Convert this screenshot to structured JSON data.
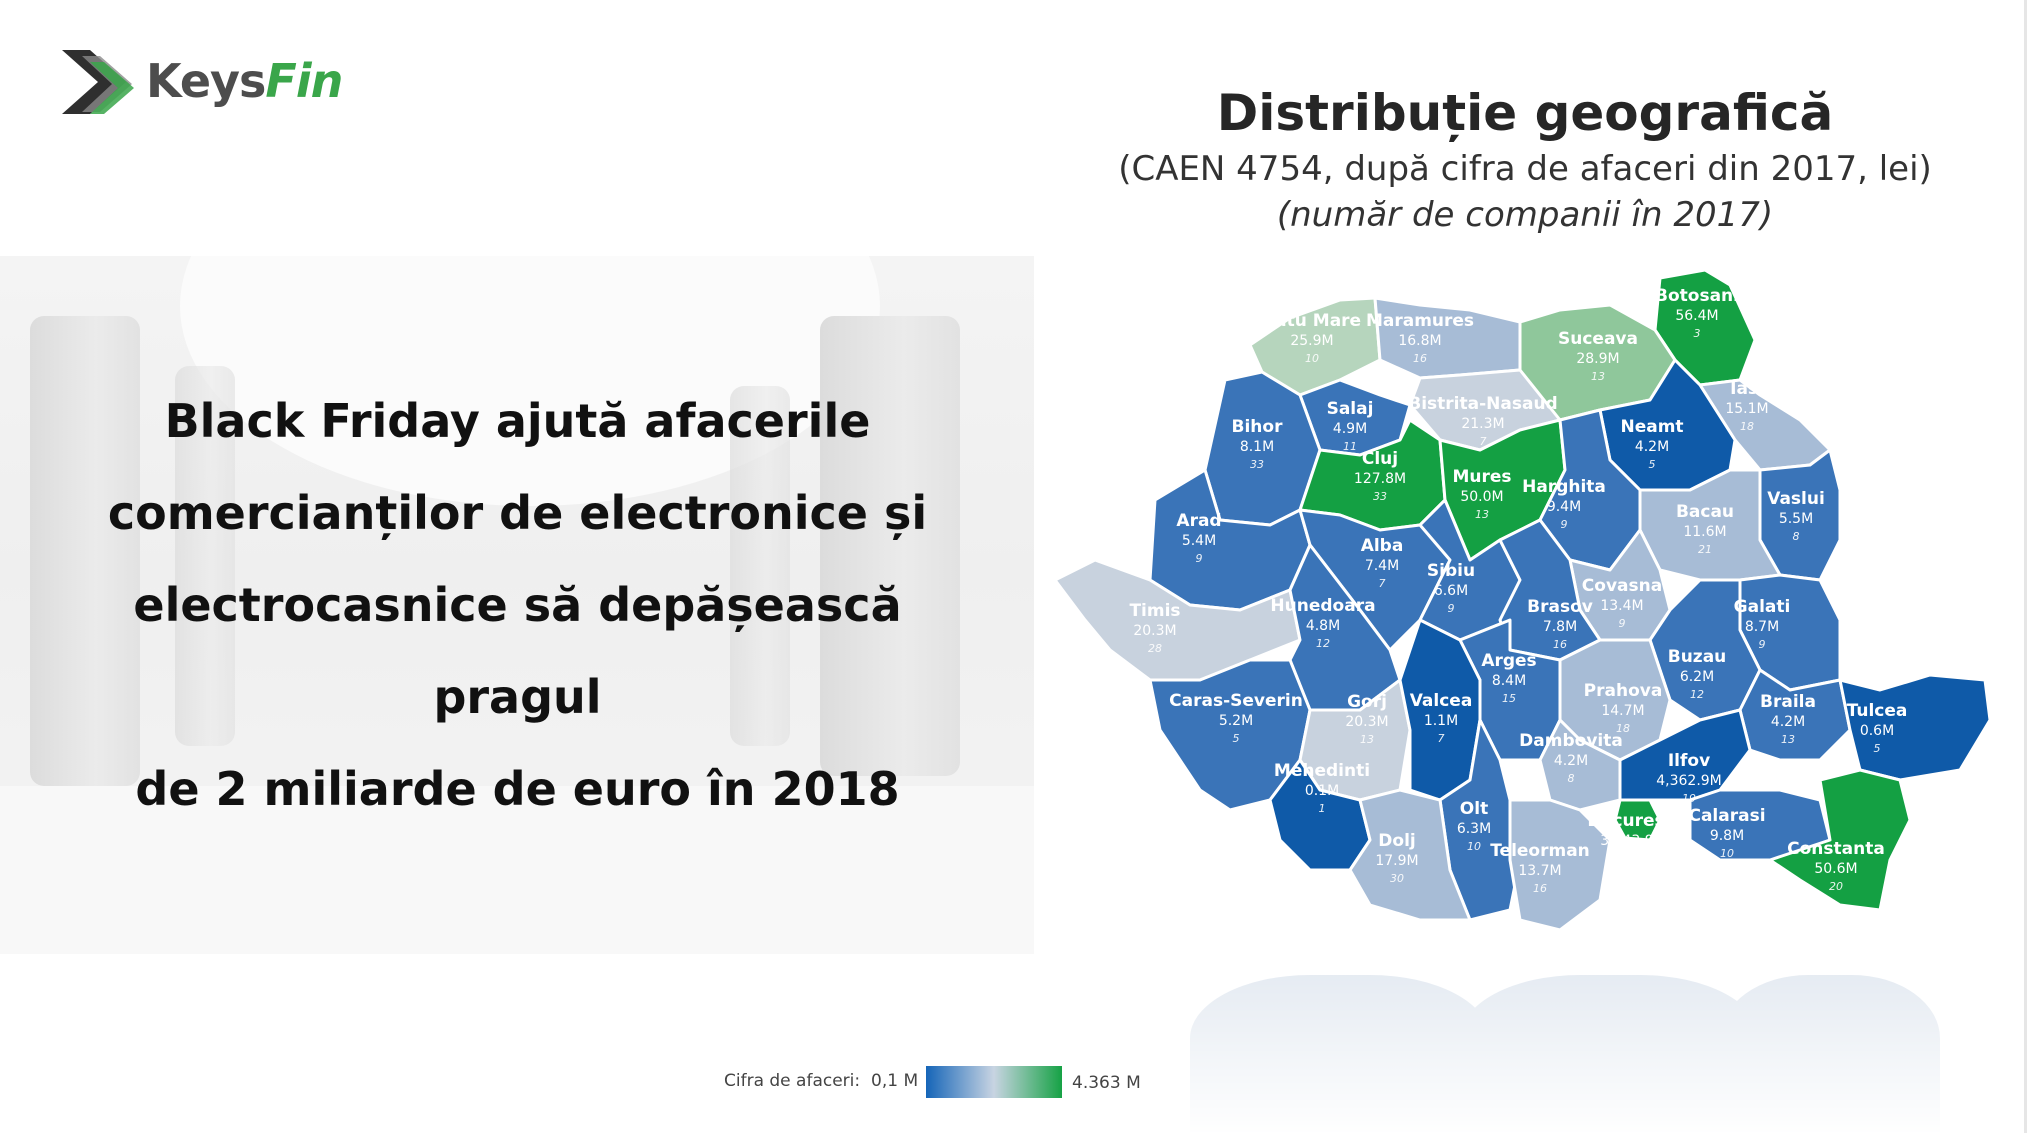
{
  "logo": {
    "brand_part1": "Keys",
    "brand_part2": "Fin"
  },
  "left_panel": {
    "headline_lines": [
      "Black Friday ajută afacerile",
      "comercianților de electronice și",
      "electrocasnice să depășească pragul",
      "de 2 miliarde de euro în 2018"
    ]
  },
  "map_title": {
    "title": "Distribuție geografică",
    "subtitle": "(CAEN 4754, după cifra de afaceri din 2017, lei)",
    "subtitle2": "(număr de companii în 2017)"
  },
  "colors": {
    "dark_blue": "#0f5aa8",
    "mid_blue": "#3a74b8",
    "light_blue": "#a7bcd6",
    "pale": "#c8d2de",
    "green": "#14a043",
    "light_green": "#8fc79b",
    "pale_green": "#b6d5bd"
  },
  "counties": [
    {
      "name": "Satu Mare",
      "value": "25.9M",
      "count": "10"
    },
    {
      "name": "Maramures",
      "value": "16.8M",
      "count": "16"
    },
    {
      "name": "Botosani",
      "value": "56.4M",
      "count": "3"
    },
    {
      "name": "Suceava",
      "value": "28.9M",
      "count": "13"
    },
    {
      "name": "Iasi",
      "value": "15.1M",
      "count": "18"
    },
    {
      "name": "Salaj",
      "value": "4.9M",
      "count": "11"
    },
    {
      "name": "Bistrita-Nasaud",
      "value": "21.3M",
      "count": "7"
    },
    {
      "name": "Bihor",
      "value": "8.1M",
      "count": "33"
    },
    {
      "name": "Neamt",
      "value": "4.2M",
      "count": "5"
    },
    {
      "name": "Cluj",
      "value": "127.8M",
      "count": "33"
    },
    {
      "name": "Mures",
      "value": "50.0M",
      "count": "13"
    },
    {
      "name": "Harghita",
      "value": "9.4M",
      "count": "9"
    },
    {
      "name": "Vaslui",
      "value": "5.5M",
      "count": "8"
    },
    {
      "name": "Bacau",
      "value": "11.6M",
      "count": "21"
    },
    {
      "name": "Arad",
      "value": "5.4M",
      "count": "9"
    },
    {
      "name": "Alba",
      "value": "7.4M",
      "count": "7"
    },
    {
      "name": "Sibiu",
      "value": "6.6M",
      "count": "9"
    },
    {
      "name": "Covasna",
      "value": "13.4M",
      "count": "9"
    },
    {
      "name": "Timis",
      "value": "20.3M",
      "count": "28"
    },
    {
      "name": "Hunedoara",
      "value": "4.8M",
      "count": "12"
    },
    {
      "name": "Brasov",
      "value": "7.8M",
      "count": "16"
    },
    {
      "name": "Galati",
      "value": "8.7M",
      "count": "9"
    },
    {
      "name": "Arges",
      "value": "8.4M",
      "count": "15"
    },
    {
      "name": "Buzau",
      "value": "6.2M",
      "count": "12"
    },
    {
      "name": "Prahova",
      "value": "14.7M",
      "count": "18"
    },
    {
      "name": "Caras-Severin",
      "value": "5.2M",
      "count": "5"
    },
    {
      "name": "Gorj",
      "value": "20.3M",
      "count": "13"
    },
    {
      "name": "Valcea",
      "value": "1.1M",
      "count": "7"
    },
    {
      "name": "Braila",
      "value": "4.2M",
      "count": "13"
    },
    {
      "name": "Tulcea",
      "value": "0.6M",
      "count": "5"
    },
    {
      "name": "Dambovita",
      "value": "4.2M",
      "count": "8"
    },
    {
      "name": "Ilfov",
      "value": "4,362.9M",
      "count": "19"
    },
    {
      "name": "Mehedinti",
      "value": "0.1M",
      "count": "1"
    },
    {
      "name": "Olt",
      "value": "6.3M",
      "count": "10"
    },
    {
      "name": "București",
      "value": "3,343.9M",
      "count": "99"
    },
    {
      "name": "Calarasi",
      "value": "9.8M",
      "count": "10"
    },
    {
      "name": "Dolj",
      "value": "17.9M",
      "count": "30"
    },
    {
      "name": "Teleorman",
      "value": "13.7M",
      "count": "16"
    },
    {
      "name": "Constanta",
      "value": "50.6M",
      "count": "20"
    }
  ],
  "legend": {
    "caption": "Cifra de afaceri:",
    "min_label": "0,1 M",
    "max_label": "4.363 M",
    "gradient": [
      "#1565b8",
      "#c8d4e2",
      "#16a245"
    ]
  }
}
